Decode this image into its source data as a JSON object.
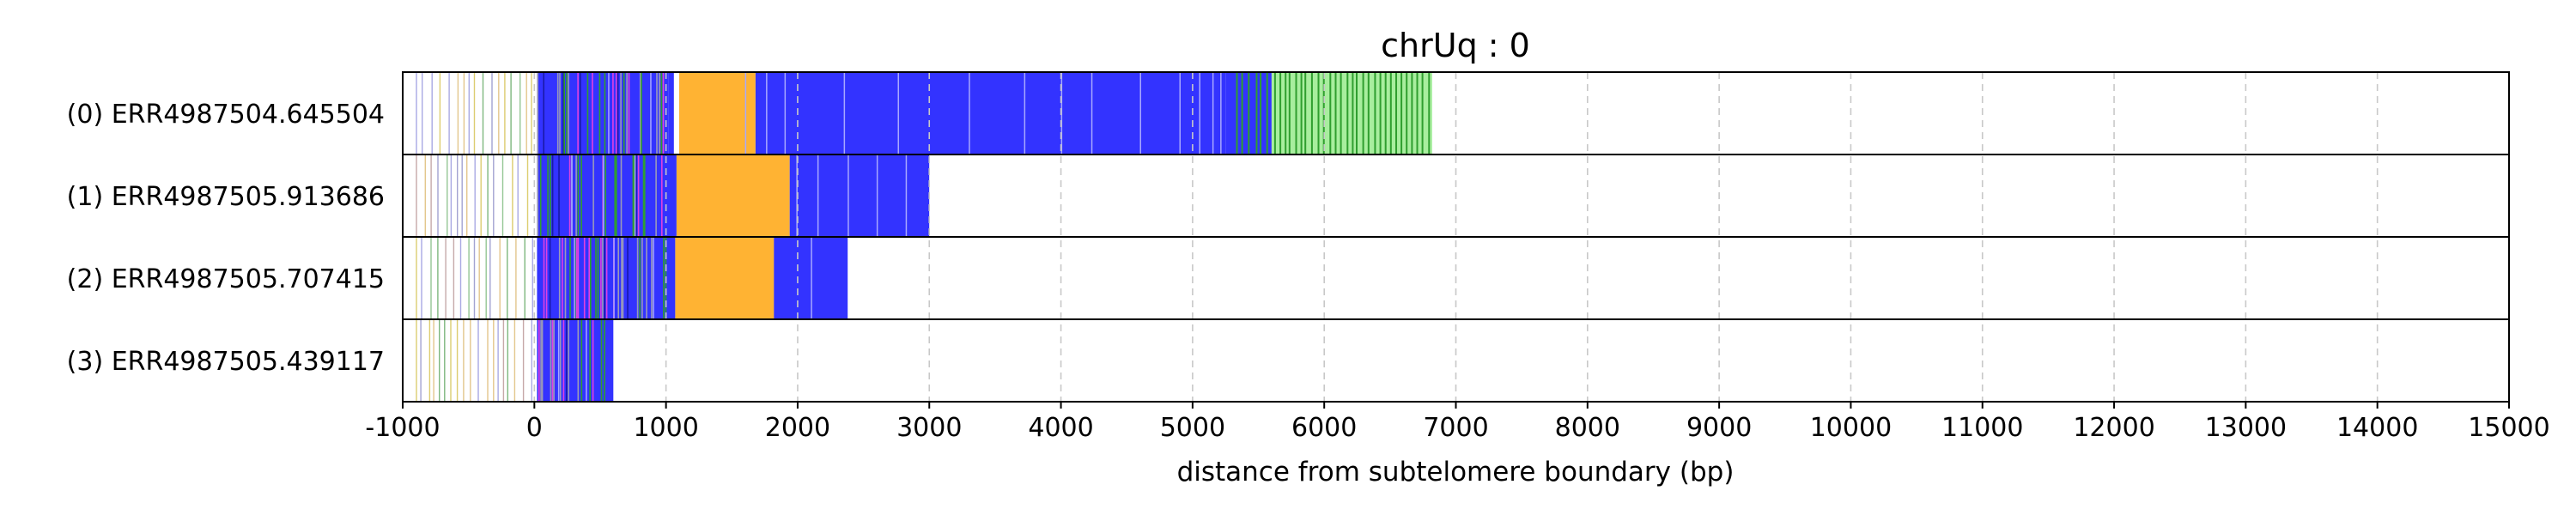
{
  "chart_data": {
    "type": "bar",
    "title": "chrUq : 0",
    "xlabel": "distance from subtelomere boundary (bp)",
    "ylabel": "",
    "xlim": [
      -1000,
      15000
    ],
    "xticks": [
      "-1000",
      "0",
      "1000",
      "2000",
      "3000",
      "4000",
      "5000",
      "6000",
      "7000",
      "8000",
      "9000",
      "10000",
      "11000",
      "12000",
      "13000",
      "14000",
      "15000"
    ],
    "grid": "vertical dashed",
    "colors": {
      "blue": "#3333ff",
      "orange": "#ffb333",
      "green": "#2f9e2f",
      "light_green": "#a8ee9e",
      "magenta": "#e040e0",
      "gray": "#888888",
      "yellow": "#e8d040",
      "grid": "#c8c8c8"
    },
    "rows": [
      {
        "label": "(0) ERR4987504.645504",
        "read_end": 6820,
        "segments": [
          {
            "start": 20,
            "end": 1020,
            "color": "blue"
          },
          {
            "start": 1020,
            "end": 1060,
            "color": "blue"
          },
          {
            "start": 1100,
            "end": 1680,
            "color": "orange"
          },
          {
            "start": 1680,
            "end": 5250,
            "color": "blue"
          },
          {
            "start": 5250,
            "end": 5600,
            "color": "blue"
          },
          {
            "start": 5600,
            "end": 6820,
            "color": "light_green"
          }
        ],
        "green_marks": [
          5330,
          5370,
          5420,
          5480,
          5510,
          5560,
          5620,
          5660,
          5700,
          5730,
          5780,
          5820,
          5850,
          5900,
          5950,
          5990,
          6040,
          6080,
          6120,
          6170,
          6210,
          6240,
          6290,
          6330,
          6380,
          6420,
          6460,
          6500,
          6540,
          6580,
          6620,
          6660,
          6700,
          6740,
          6790
        ],
        "blue_gaps": [
          560,
          880,
          1600,
          1760,
          1900,
          2350,
          2760,
          3300,
          3720,
          4000,
          4230,
          4600,
          4900,
          5050,
          5150,
          5210
        ]
      },
      {
        "label": "(1) ERR4987505.913686",
        "read_end": 3000,
        "segments": [
          {
            "start": 20,
            "end": 1080,
            "color": "blue"
          },
          {
            "start": 1080,
            "end": 1940,
            "color": "orange"
          },
          {
            "start": 1940,
            "end": 2000,
            "color": "blue"
          },
          {
            "start": 2000,
            "end": 3000,
            "color": "blue"
          }
        ],
        "green_marks": [],
        "blue_gaps": [
          280,
          520,
          760,
          1990,
          2150,
          2380,
          2600,
          2820
        ]
      },
      {
        "label": "(2) ERR4987505.707415",
        "read_end": 2380,
        "segments": [
          {
            "start": 20,
            "end": 1070,
            "color": "blue"
          },
          {
            "start": 1070,
            "end": 1820,
            "color": "orange"
          },
          {
            "start": 1820,
            "end": 2380,
            "color": "blue"
          }
        ],
        "green_marks": [],
        "blue_gaps": [
          300,
          600,
          900,
          2100
        ]
      },
      {
        "label": "(3) ERR4987505.439117",
        "read_end": 600,
        "segments": [
          {
            "start": 20,
            "end": 600,
            "color": "blue"
          }
        ],
        "green_marks": [],
        "blue_gaps": [
          180,
          390
        ]
      }
    ]
  }
}
